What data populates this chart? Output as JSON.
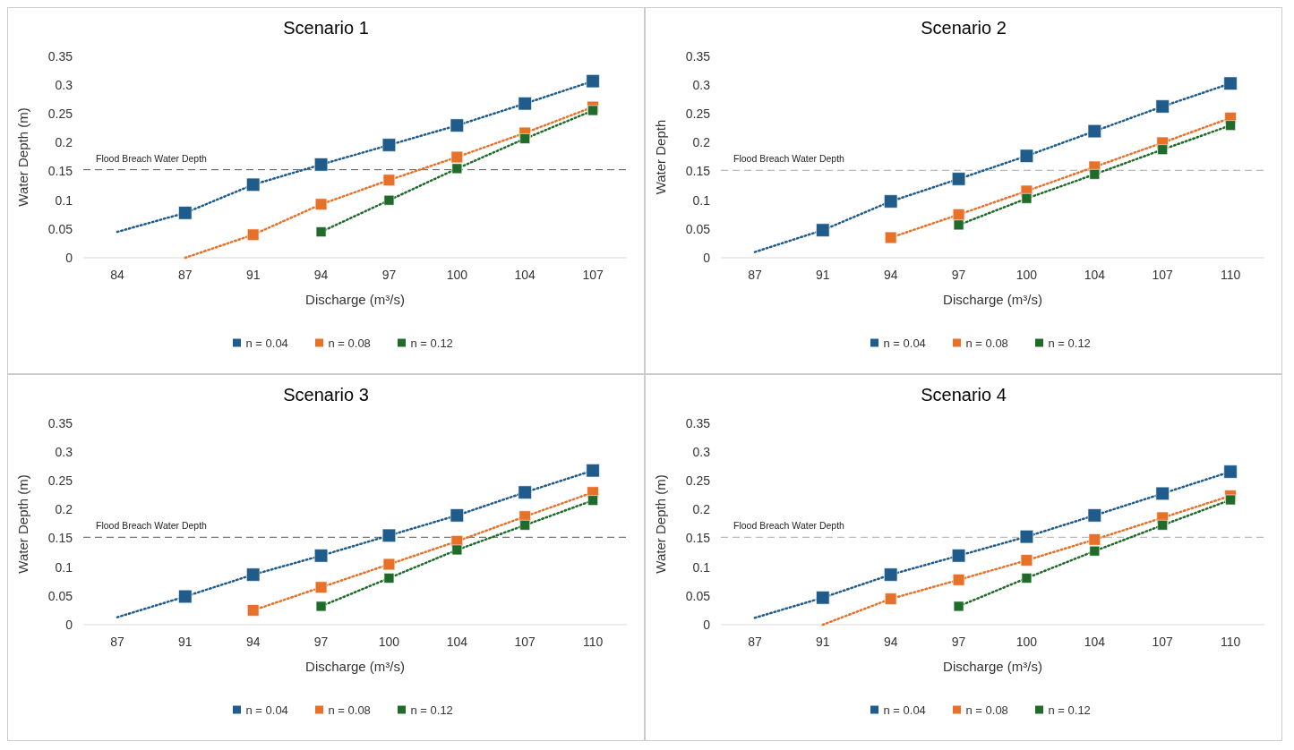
{
  "chart_data": [
    {
      "type": "line",
      "title": "Scenario 1",
      "xlabel": "Discharge (m³/s)",
      "ylabel": "Water Depth (m)",
      "categories": [
        "84",
        "87",
        "91",
        "94",
        "97",
        "100",
        "104",
        "107"
      ],
      "ylim": [
        0,
        0.35
      ],
      "yticks": [
        0,
        0.05,
        0.1,
        0.15,
        0.2,
        0.25,
        0.3,
        0.35
      ],
      "legend": "bottom",
      "ref_lines": [
        {
          "axis": "y",
          "value": 0.153,
          "label": "Flood Breach Water Depth",
          "color": "#555555",
          "line_style": "dashed"
        }
      ],
      "series": [
        {
          "color": "#1f5c8b",
          "line_style": "dotted",
          "marker": "none",
          "values": [
            0.045,
            0.078,
            0.127,
            0.162,
            0.196,
            0.23,
            0.268,
            0.307
          ]
        },
        {
          "color": "#e8712a",
          "line_style": "dotted",
          "marker": "none",
          "values": [
            null,
            0.0,
            0.04,
            0.093,
            0.135,
            0.175,
            0.217,
            0.262
          ]
        },
        {
          "color": "#1e6b2a",
          "line_style": "dotted",
          "marker": "none",
          "values": [
            null,
            null,
            null,
            0.045,
            0.1,
            0.155,
            0.207,
            0.256
          ]
        },
        {
          "type": "scatter",
          "name": "n = 0.04",
          "color": "#1f5c8b",
          "marker": "square",
          "values": [
            null,
            0.078,
            0.127,
            0.162,
            0.196,
            0.23,
            0.268,
            0.307
          ]
        },
        {
          "type": "scatter",
          "name": "n = 0.08",
          "color": "#e8712a",
          "marker": "square",
          "values": [
            null,
            null,
            0.04,
            0.093,
            0.135,
            0.175,
            0.217,
            0.262
          ]
        },
        {
          "type": "scatter",
          "name": "n = 0.12",
          "color": "#1e6b2a",
          "marker": "square",
          "values": [
            null,
            null,
            null,
            0.045,
            0.1,
            0.155,
            0.207,
            0.256
          ]
        }
      ]
    },
    {
      "type": "line",
      "title": "Scenario 2",
      "xlabel": "Discharge (m³/s)",
      "ylabel": "Water Depth",
      "categories": [
        "87",
        "91",
        "94",
        "97",
        "100",
        "104",
        "107",
        "110"
      ],
      "ylim": [
        0,
        0.35
      ],
      "yticks": [
        0,
        0.05,
        0.1,
        0.15,
        0.2,
        0.25,
        0.3,
        0.35
      ],
      "legend": "bottom",
      "ref_lines": [
        {
          "axis": "y",
          "value": 0.152,
          "label": "Flood Breach Water Depth",
          "color": "#aaaaaa",
          "line_style": "dashed"
        }
      ],
      "series": [
        {
          "color": "#1f5c8b",
          "line_style": "dotted",
          "marker": "none",
          "values": [
            0.01,
            0.048,
            0.098,
            0.137,
            0.177,
            0.22,
            0.263,
            0.303
          ]
        },
        {
          "color": "#e8712a",
          "line_style": "dotted",
          "marker": "none",
          "values": [
            null,
            null,
            0.035,
            0.075,
            0.116,
            0.158,
            0.2,
            0.243
          ]
        },
        {
          "color": "#1e6b2a",
          "line_style": "dotted",
          "marker": "none",
          "values": [
            null,
            null,
            null,
            0.057,
            0.103,
            0.145,
            0.188,
            0.23
          ]
        },
        {
          "type": "scatter",
          "name": "n = 0.04",
          "color": "#1f5c8b",
          "marker": "square",
          "values": [
            null,
            0.048,
            0.098,
            0.137,
            0.177,
            0.22,
            0.263,
            0.303
          ]
        },
        {
          "type": "scatter",
          "name": "n = 0.08",
          "color": "#e8712a",
          "marker": "square",
          "values": [
            null,
            null,
            0.035,
            0.075,
            0.116,
            0.158,
            0.2,
            0.243
          ]
        },
        {
          "type": "scatter",
          "name": "n = 0.12",
          "color": "#1e6b2a",
          "marker": "square",
          "values": [
            null,
            null,
            null,
            0.057,
            0.103,
            0.145,
            0.188,
            0.23
          ]
        }
      ]
    },
    {
      "type": "line",
      "title": "Scenario 3",
      "xlabel": "Discharge (m³/s)",
      "ylabel": "Water Depth (m)",
      "categories": [
        "87",
        "91",
        "94",
        "97",
        "100",
        "104",
        "107",
        "110"
      ],
      "ylim": [
        0,
        0.35
      ],
      "yticks": [
        0,
        0.05,
        0.1,
        0.15,
        0.2,
        0.25,
        0.3,
        0.35
      ],
      "legend": "bottom",
      "ref_lines": [
        {
          "axis": "y",
          "value": 0.152,
          "label": "Flood Breach Water Depth",
          "color": "#555555",
          "line_style": "dashed"
        }
      ],
      "series": [
        {
          "color": "#1f5c8b",
          "line_style": "dotted",
          "marker": "none",
          "values": [
            0.013,
            0.049,
            0.087,
            0.12,
            0.155,
            0.19,
            0.23,
            0.268
          ]
        },
        {
          "color": "#e8712a",
          "line_style": "dotted",
          "marker": "none",
          "values": [
            null,
            null,
            0.025,
            0.065,
            0.105,
            0.145,
            0.188,
            0.23
          ]
        },
        {
          "color": "#1e6b2a",
          "line_style": "dotted",
          "marker": "none",
          "values": [
            null,
            null,
            null,
            0.032,
            0.081,
            0.13,
            0.173,
            0.216
          ]
        },
        {
          "type": "scatter",
          "name": "n = 0.04",
          "color": "#1f5c8b",
          "marker": "square",
          "values": [
            null,
            0.049,
            0.087,
            0.12,
            0.155,
            0.19,
            0.23,
            0.268
          ]
        },
        {
          "type": "scatter",
          "name": "n = 0.08",
          "color": "#e8712a",
          "marker": "square",
          "values": [
            null,
            null,
            0.025,
            0.065,
            0.105,
            0.145,
            0.188,
            0.23
          ]
        },
        {
          "type": "scatter",
          "name": "n = 0.12",
          "color": "#1e6b2a",
          "marker": "square",
          "values": [
            null,
            null,
            null,
            0.032,
            0.081,
            0.13,
            0.173,
            0.216
          ]
        }
      ]
    },
    {
      "type": "line",
      "title": "Scenario 4",
      "xlabel": "Discharge (m³/s)",
      "ylabel": "Water Depth (m)",
      "categories": [
        "87",
        "91",
        "94",
        "97",
        "100",
        "104",
        "107",
        "110"
      ],
      "ylim": [
        0,
        0.35
      ],
      "yticks": [
        0,
        0.05,
        0.1,
        0.15,
        0.2,
        0.25,
        0.3,
        0.35
      ],
      "legend": "bottom",
      "ref_lines": [
        {
          "axis": "y",
          "value": 0.152,
          "label": "Flood Breach Water Depth",
          "color": "#aaaaaa",
          "line_style": "dashed"
        }
      ],
      "series": [
        {
          "color": "#1f5c8b",
          "line_style": "dotted",
          "marker": "none",
          "values": [
            0.012,
            0.047,
            0.087,
            0.12,
            0.153,
            0.19,
            0.228,
            0.266
          ]
        },
        {
          "color": "#e8712a",
          "line_style": "dotted",
          "marker": "none",
          "values": [
            null,
            0.0,
            0.045,
            0.078,
            0.112,
            0.148,
            0.186,
            0.224
          ]
        },
        {
          "color": "#1e6b2a",
          "line_style": "dotted",
          "marker": "none",
          "values": [
            null,
            null,
            null,
            0.032,
            0.081,
            0.128,
            0.173,
            0.217
          ]
        },
        {
          "type": "scatter",
          "name": "n = 0.04",
          "color": "#1f5c8b",
          "marker": "square",
          "values": [
            null,
            0.047,
            0.087,
            0.12,
            0.153,
            0.19,
            0.228,
            0.266
          ]
        },
        {
          "type": "scatter",
          "name": "n = 0.08",
          "color": "#e8712a",
          "marker": "square",
          "values": [
            null,
            null,
            0.045,
            0.078,
            0.112,
            0.148,
            0.186,
            0.224
          ]
        },
        {
          "type": "scatter",
          "name": "n = 0.12",
          "color": "#1e6b2a",
          "marker": "square",
          "values": [
            null,
            null,
            null,
            0.032,
            0.081,
            0.128,
            0.173,
            0.217
          ]
        }
      ]
    }
  ]
}
